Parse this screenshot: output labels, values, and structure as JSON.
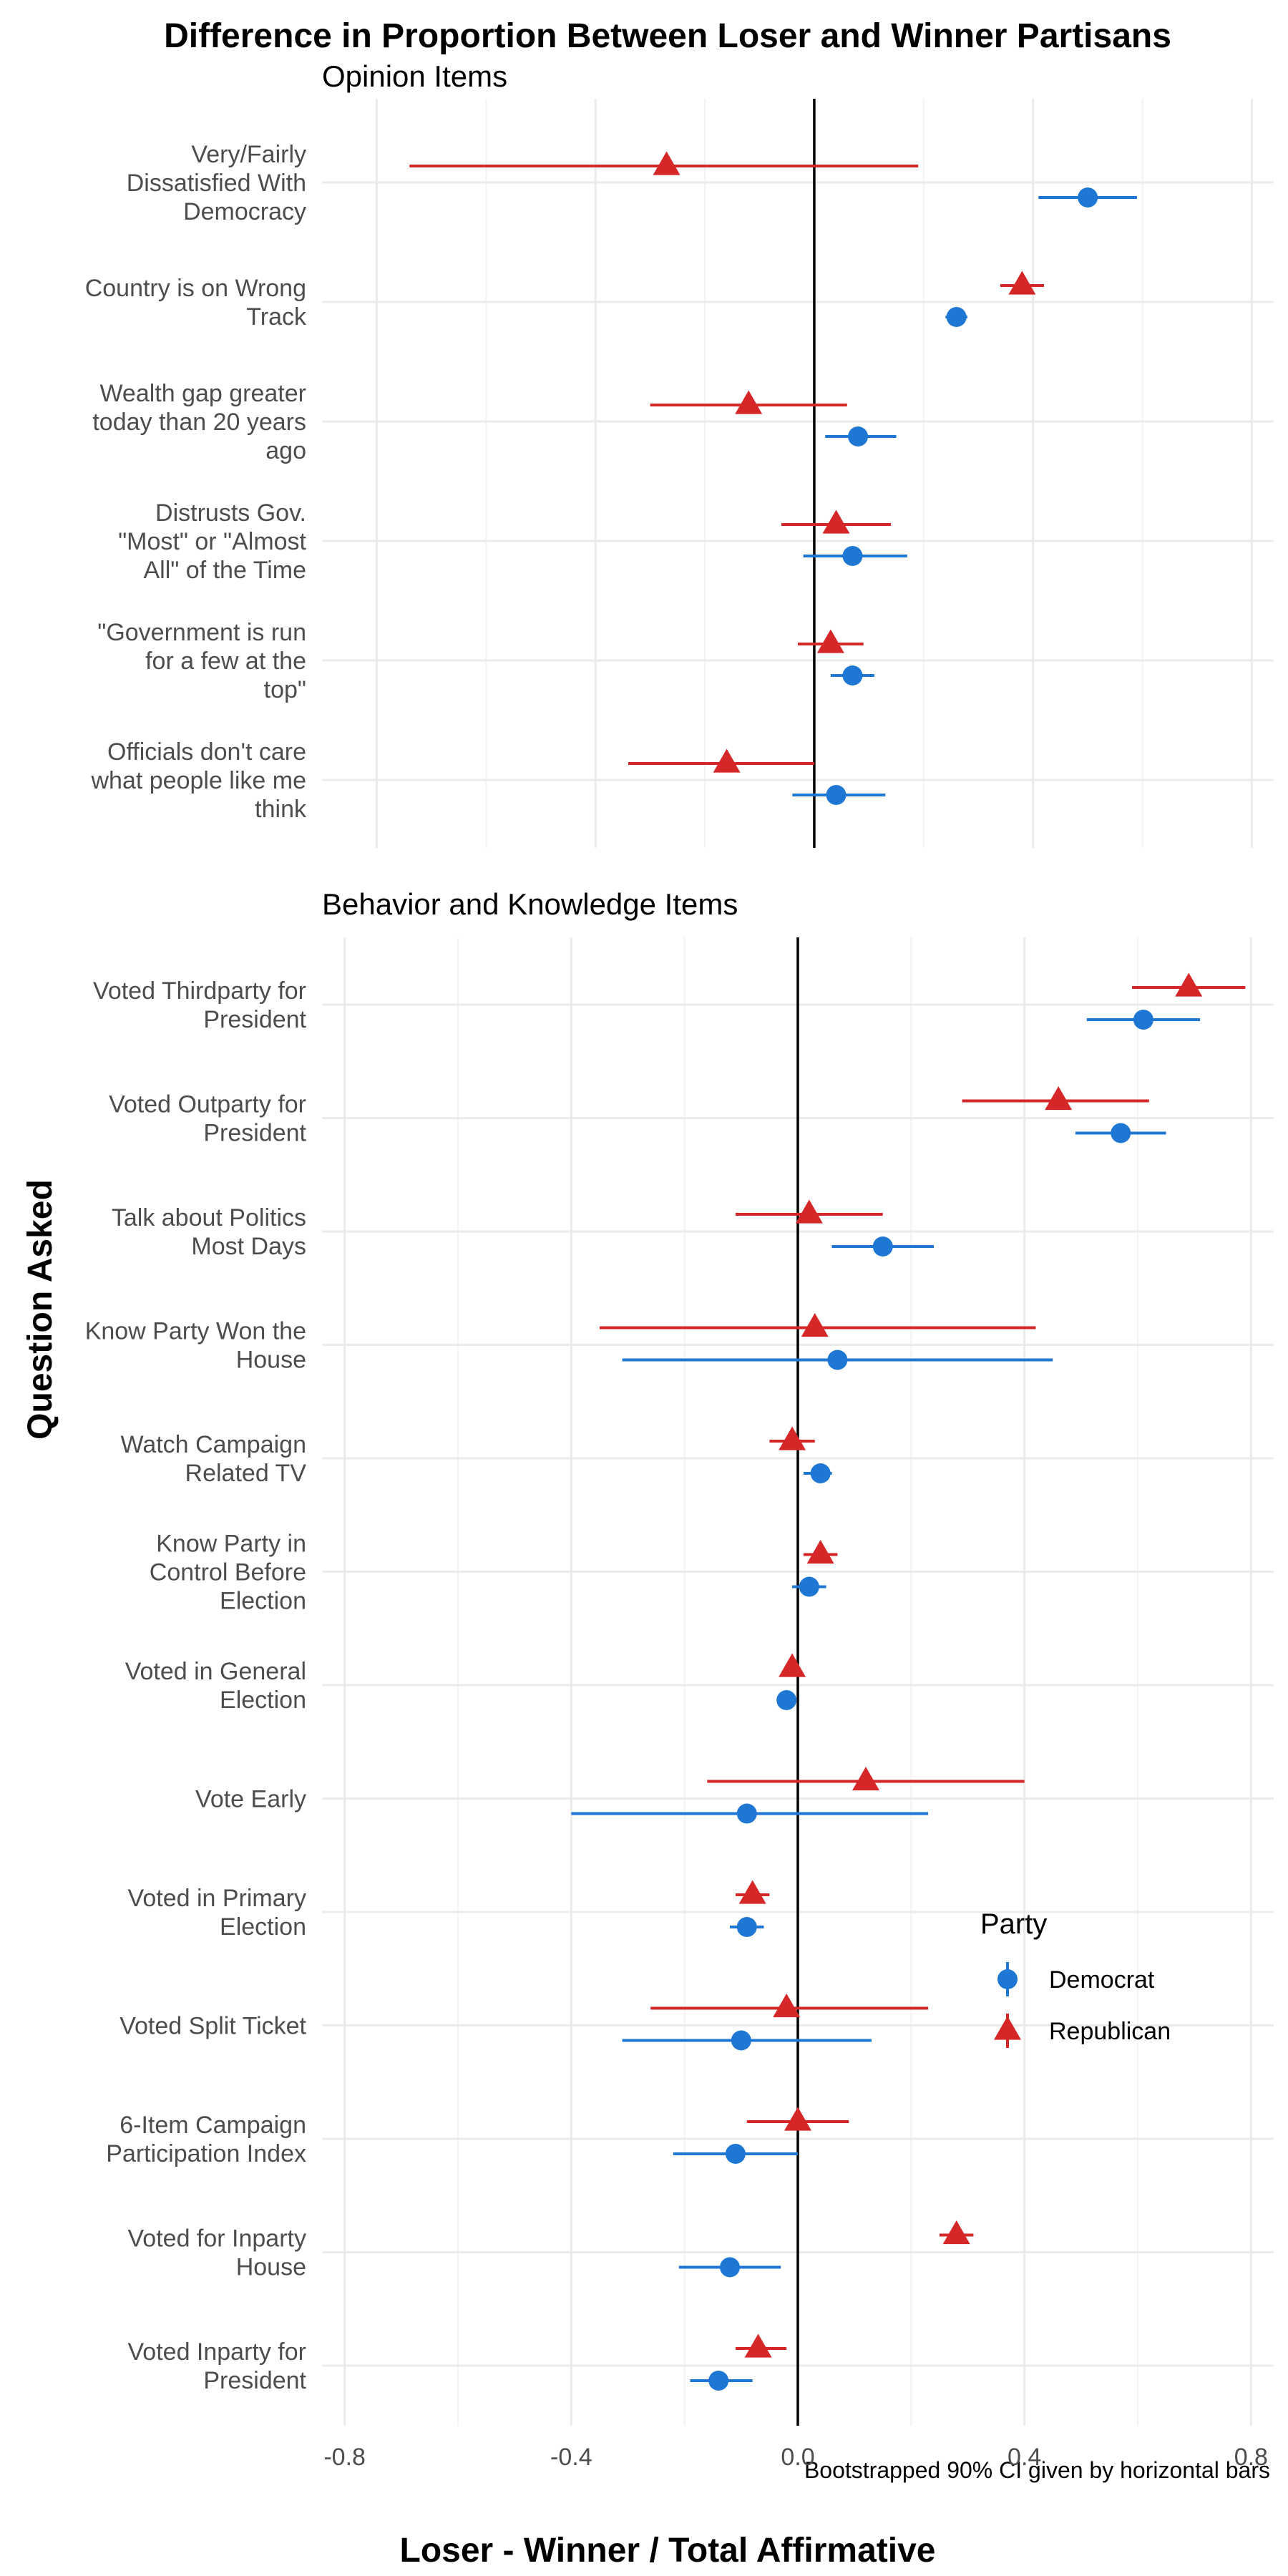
{
  "chart_data": {
    "type": "scatter",
    "title": "Difference in Proportion Between Loser and Winner Partisans",
    "xlabel": "Loser - Winner / Total Affirmative",
    "ylabel": "Question Asked",
    "caption": "Bootstrapped 90% CI given by horizontal bars",
    "grid": true,
    "legend": {
      "title": "Party",
      "placement": "right",
      "entries": [
        {
          "name": "Democrat",
          "color": "#1f77d4",
          "shape": "circle"
        },
        {
          "name": "Republican",
          "color": "#d62728",
          "shape": "triangle"
        }
      ]
    },
    "panels": [
      {
        "title": "Opinion Items",
        "xlim": [
          -0.9,
          0.84
        ],
        "xticks": [
          -0.8,
          -0.4,
          0.0,
          0.4,
          0.8
        ],
        "show_tick_labels": false,
        "items": [
          {
            "label": [
              "Very/Fairly",
              "Dissatisfied With",
              "Democracy"
            ],
            "republican": {
              "est": -0.27,
              "lo": -0.74,
              "hi": 0.19
            },
            "democrat": {
              "est": 0.5,
              "lo": 0.41,
              "hi": 0.59
            }
          },
          {
            "label": [
              "Country is on Wrong",
              "Track"
            ],
            "republican": {
              "est": 0.38,
              "lo": 0.34,
              "hi": 0.42
            },
            "democrat": {
              "est": 0.26,
              "lo": 0.24,
              "hi": 0.28
            }
          },
          {
            "label": [
              "Wealth gap greater",
              "today than 20 years",
              "ago"
            ],
            "republican": {
              "est": -0.12,
              "lo": -0.3,
              "hi": 0.06
            },
            "democrat": {
              "est": 0.08,
              "lo": 0.02,
              "hi": 0.15
            }
          },
          {
            "label": [
              "Distrusts Gov.",
              "\"Most\" or \"Almost",
              "All\" of the Time"
            ],
            "republican": {
              "est": 0.04,
              "lo": -0.06,
              "hi": 0.14
            },
            "democrat": {
              "est": 0.07,
              "lo": -0.02,
              "hi": 0.17
            }
          },
          {
            "label": [
              "\"Government is run",
              "for a few at the",
              "top\""
            ],
            "republican": {
              "est": 0.03,
              "lo": -0.03,
              "hi": 0.09
            },
            "democrat": {
              "est": 0.07,
              "lo": 0.03,
              "hi": 0.11
            }
          },
          {
            "label": [
              "Officials don't care",
              "what people like me",
              "think"
            ],
            "republican": {
              "est": -0.16,
              "lo": -0.34,
              "hi": 0.0
            },
            "democrat": {
              "est": 0.04,
              "lo": -0.04,
              "hi": 0.13
            }
          }
        ]
      },
      {
        "title": "Behavior and Knowledge Items",
        "xlim": [
          -0.84,
          0.84
        ],
        "xticks": [
          -0.8,
          -0.4,
          0.0,
          0.4,
          0.8
        ],
        "xtick_labels": [
          "-0.8",
          "-0.4",
          "0.0",
          "0.4",
          "0.8"
        ],
        "show_tick_labels": true,
        "items": [
          {
            "label": [
              "Voted Thirdparty for",
              "President"
            ],
            "republican": {
              "est": 0.69,
              "lo": 0.59,
              "hi": 0.79
            },
            "democrat": {
              "est": 0.61,
              "lo": 0.51,
              "hi": 0.71
            }
          },
          {
            "label": [
              "Voted Outparty for",
              "President"
            ],
            "republican": {
              "est": 0.46,
              "lo": 0.29,
              "hi": 0.62
            },
            "democrat": {
              "est": 0.57,
              "lo": 0.49,
              "hi": 0.65
            }
          },
          {
            "label": [
              "Talk about Politics",
              "Most Days"
            ],
            "republican": {
              "est": 0.02,
              "lo": -0.11,
              "hi": 0.15
            },
            "democrat": {
              "est": 0.15,
              "lo": 0.06,
              "hi": 0.24
            }
          },
          {
            "label": [
              "Know Party Won the",
              "House"
            ],
            "republican": {
              "est": 0.03,
              "lo": -0.35,
              "hi": 0.42
            },
            "democrat": {
              "est": 0.07,
              "lo": -0.31,
              "hi": 0.45
            }
          },
          {
            "label": [
              "Watch Campaign",
              "Related TV"
            ],
            "republican": {
              "est": -0.01,
              "lo": -0.05,
              "hi": 0.03
            },
            "democrat": {
              "est": 0.04,
              "lo": 0.01,
              "hi": 0.06
            }
          },
          {
            "label": [
              "Know Party in",
              "Control Before",
              "Election"
            ],
            "republican": {
              "est": 0.04,
              "lo": 0.01,
              "hi": 0.07
            },
            "democrat": {
              "est": 0.02,
              "lo": -0.01,
              "hi": 0.05
            }
          },
          {
            "label": [
              "Voted in General",
              "Election"
            ],
            "republican": {
              "est": -0.01,
              "lo": -0.02,
              "hi": 0.0
            },
            "democrat": {
              "est": -0.02,
              "lo": -0.03,
              "hi": -0.01
            }
          },
          {
            "label": [
              "Vote Early"
            ],
            "republican": {
              "est": 0.12,
              "lo": -0.16,
              "hi": 0.4
            },
            "democrat": {
              "est": -0.09,
              "lo": -0.4,
              "hi": 0.23
            }
          },
          {
            "label": [
              "Voted in Primary",
              "Election"
            ],
            "republican": {
              "est": -0.08,
              "lo": -0.11,
              "hi": -0.05
            },
            "democrat": {
              "est": -0.09,
              "lo": -0.12,
              "hi": -0.06
            }
          },
          {
            "label": [
              "Voted Split Ticket"
            ],
            "republican": {
              "est": -0.02,
              "lo": -0.26,
              "hi": 0.23
            },
            "democrat": {
              "est": -0.1,
              "lo": -0.31,
              "hi": 0.13
            }
          },
          {
            "label": [
              "6-Item Campaign",
              "Participation Index"
            ],
            "republican": {
              "est": 0.0,
              "lo": -0.09,
              "hi": 0.09
            },
            "democrat": {
              "est": -0.11,
              "lo": -0.22,
              "hi": 0.0
            }
          },
          {
            "label": [
              "Voted for Inparty",
              "House"
            ],
            "republican": {
              "est": 0.28,
              "lo": 0.25,
              "hi": 0.31
            },
            "democrat": {
              "est": -0.12,
              "lo": -0.21,
              "hi": -0.03
            }
          },
          {
            "label": [
              "Voted Inparty for",
              "President"
            ],
            "republican": {
              "est": -0.07,
              "lo": -0.11,
              "hi": -0.02
            },
            "democrat": {
              "est": -0.14,
              "lo": -0.19,
              "hi": -0.08
            }
          }
        ]
      }
    ]
  }
}
